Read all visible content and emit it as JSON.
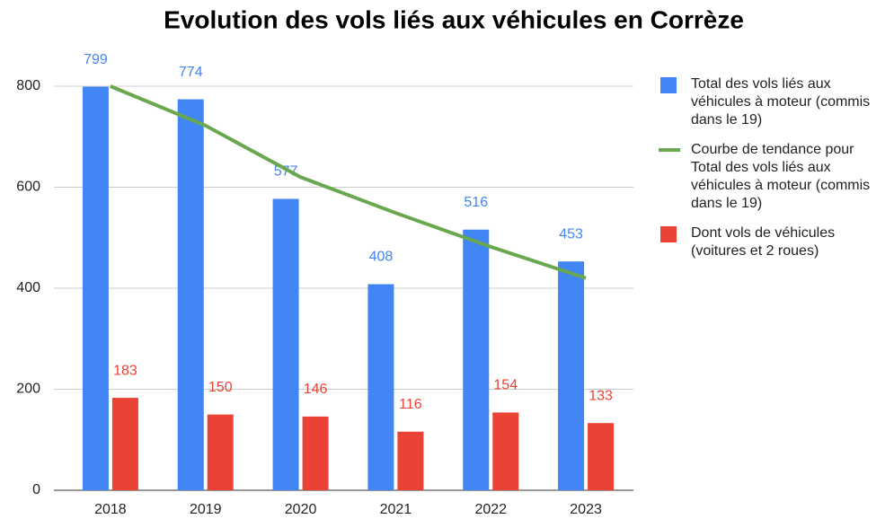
{
  "chart_data": {
    "type": "bar",
    "title": "Evolution des vols liés aux véhicules en Corrèze",
    "categories": [
      "2018",
      "2019",
      "2020",
      "2021",
      "2022",
      "2023"
    ],
    "series": [
      {
        "name": "Total des vols liés aux véhicules à moteur (commis dans le 19)",
        "type": "bar",
        "color": "#4285f4",
        "values": [
          799,
          774,
          577,
          408,
          516,
          453
        ]
      },
      {
        "name": "Courbe de tendance pour Total des vols liés aux véhicules à moteur (commis dans le 19)",
        "type": "line",
        "color": "#6aa84f",
        "values": [
          800,
          722,
          620,
          549,
          482,
          420
        ]
      },
      {
        "name": "Dont vols de véhicules (voitures et 2 roues)",
        "type": "bar",
        "color": "#ea4335",
        "values": [
          183,
          150,
          146,
          116,
          154,
          133
        ]
      }
    ],
    "ylim": [
      0,
      800
    ],
    "yticks": [
      0,
      200,
      400,
      600,
      800
    ],
    "grid": true,
    "legend": "right"
  }
}
